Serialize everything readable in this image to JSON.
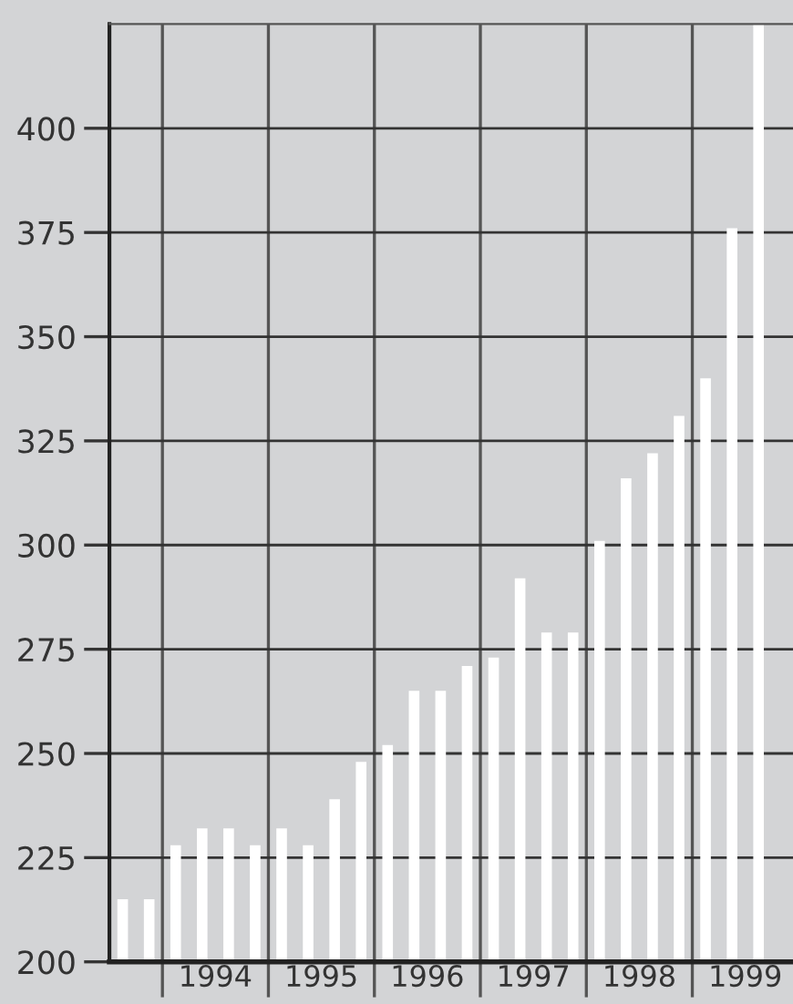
{
  "chart_data": {
    "type": "bar",
    "x": [
      1993.625,
      1993.875,
      1994.125,
      1994.375,
      1994.625,
      1994.875,
      1995.125,
      1995.375,
      1995.625,
      1995.875,
      1996.125,
      1996.375,
      1996.625,
      1996.875,
      1997.125,
      1997.375,
      1997.625,
      1997.875,
      1998.125,
      1998.375,
      1998.625,
      1998.875,
      1999.125,
      1999.375,
      1999.625
    ],
    "values": [
      215,
      215,
      228,
      232,
      232,
      228,
      232,
      228,
      239,
      248,
      252,
      265,
      265,
      271,
      273,
      292,
      279,
      279,
      301,
      316,
      322,
      331,
      340,
      376,
      425
    ],
    "color": "#ffffff",
    "xlim": [
      1993.5,
      1999.95
    ],
    "xticks": [
      {
        "value": 1994,
        "label": null
      },
      {
        "value": 1995,
        "label": null
      },
      {
        "value": 1996,
        "label": null
      },
      {
        "value": 1997,
        "label": null
      },
      {
        "value": 1998,
        "label": null
      },
      {
        "value": 1999,
        "label": null
      },
      {
        "value": 1994.5,
        "label": "1994"
      },
      {
        "value": 1995.5,
        "label": "1995"
      },
      {
        "value": 1996.5,
        "label": "1996"
      },
      {
        "value": 1997.5,
        "label": "1997"
      },
      {
        "value": 1998.5,
        "label": "1998"
      },
      {
        "value": 1999.5,
        "label": "1999"
      }
    ],
    "ylim": [
      200,
      425
    ],
    "yticks": [
      200,
      225,
      250,
      275,
      300,
      325,
      350,
      375,
      400
    ],
    "grid": true
  }
}
